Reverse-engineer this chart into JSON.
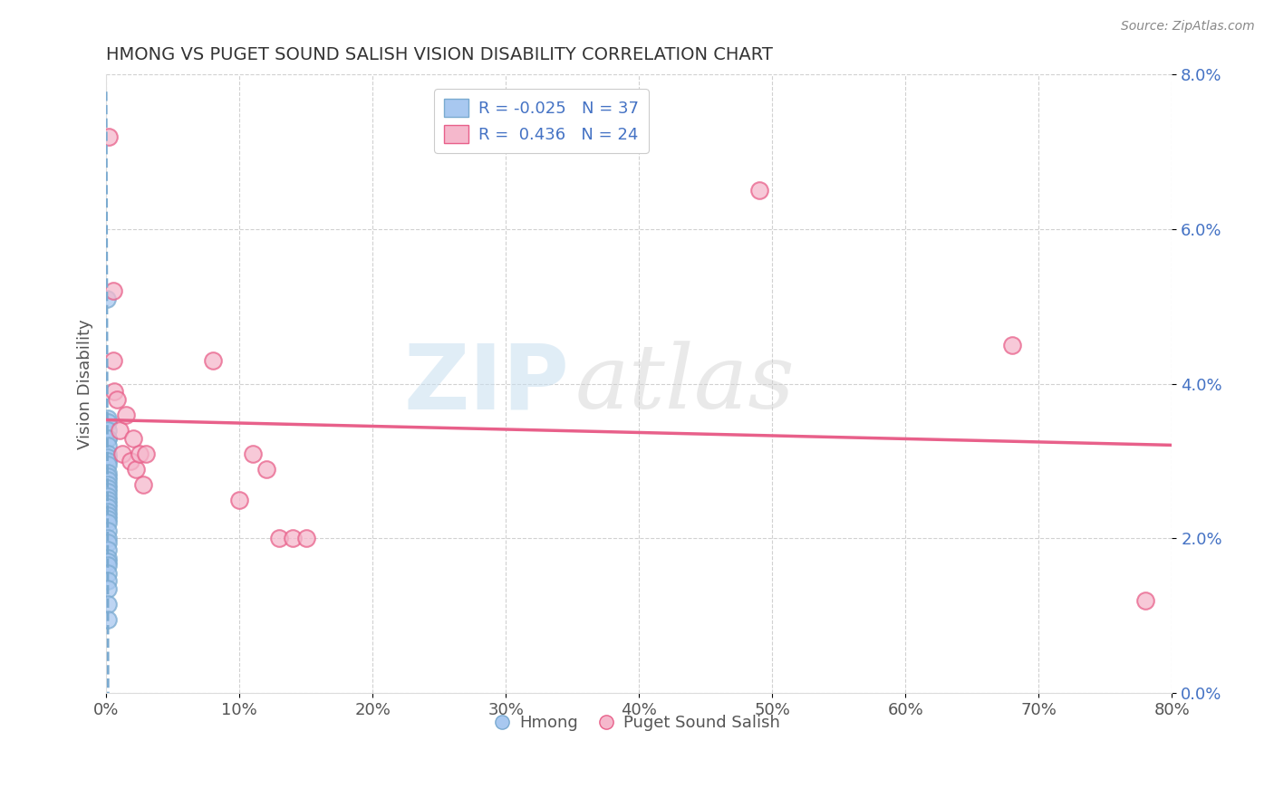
{
  "title": "HMONG VS PUGET SOUND SALISH VISION DISABILITY CORRELATION CHART",
  "source": "Source: ZipAtlas.com",
  "xlabel": "",
  "ylabel": "Vision Disability",
  "legend_label1": "Hmong",
  "legend_label2": "Puget Sound Salish",
  "R1": -0.025,
  "N1": 37,
  "R2": 0.436,
  "N2": 24,
  "xlim": [
    0,
    0.8
  ],
  "ylim": [
    0,
    0.08
  ],
  "xticks": [
    0.0,
    0.1,
    0.2,
    0.3,
    0.4,
    0.5,
    0.6,
    0.7,
    0.8
  ],
  "yticks": [
    0.0,
    0.02,
    0.04,
    0.06,
    0.08
  ],
  "color_blue": "#a8c8f0",
  "color_pink": "#f5b8cc",
  "color_line_blue": "#7aaad0",
  "color_line_pink": "#e8608a",
  "watermark_text": "ZIP",
  "watermark_text2": "atlas",
  "blue_points": [
    [
      0.0005,
      0.051
    ],
    [
      0.001,
      0.033
    ],
    [
      0.001,
      0.0355
    ],
    [
      0.001,
      0.035
    ],
    [
      0.001,
      0.034
    ],
    [
      0.001,
      0.033
    ],
    [
      0.001,
      0.032
    ],
    [
      0.001,
      0.031
    ],
    [
      0.001,
      0.0305
    ],
    [
      0.001,
      0.03
    ],
    [
      0.001,
      0.0295
    ],
    [
      0.001,
      0.0285
    ],
    [
      0.001,
      0.028
    ],
    [
      0.001,
      0.0275
    ],
    [
      0.001,
      0.027
    ],
    [
      0.001,
      0.0265
    ],
    [
      0.001,
      0.026
    ],
    [
      0.001,
      0.0255
    ],
    [
      0.001,
      0.025
    ],
    [
      0.001,
      0.0245
    ],
    [
      0.001,
      0.024
    ],
    [
      0.001,
      0.0235
    ],
    [
      0.001,
      0.023
    ],
    [
      0.001,
      0.0225
    ],
    [
      0.001,
      0.022
    ],
    [
      0.001,
      0.021
    ],
    [
      0.001,
      0.02
    ],
    [
      0.001,
      0.0195
    ],
    [
      0.001,
      0.0185
    ],
    [
      0.001,
      0.0175
    ],
    [
      0.001,
      0.017
    ],
    [
      0.001,
      0.0165
    ],
    [
      0.001,
      0.0155
    ],
    [
      0.001,
      0.0145
    ],
    [
      0.001,
      0.0135
    ],
    [
      0.001,
      0.0115
    ],
    [
      0.001,
      0.0095
    ]
  ],
  "pink_points": [
    [
      0.002,
      0.072
    ],
    [
      0.005,
      0.052
    ],
    [
      0.005,
      0.043
    ],
    [
      0.006,
      0.039
    ],
    [
      0.008,
      0.038
    ],
    [
      0.01,
      0.034
    ],
    [
      0.012,
      0.031
    ],
    [
      0.015,
      0.036
    ],
    [
      0.018,
      0.03
    ],
    [
      0.02,
      0.033
    ],
    [
      0.022,
      0.029
    ],
    [
      0.025,
      0.031
    ],
    [
      0.028,
      0.027
    ],
    [
      0.03,
      0.031
    ],
    [
      0.08,
      0.043
    ],
    [
      0.1,
      0.025
    ],
    [
      0.11,
      0.031
    ],
    [
      0.12,
      0.029
    ],
    [
      0.13,
      0.02
    ],
    [
      0.14,
      0.02
    ],
    [
      0.15,
      0.02
    ],
    [
      0.49,
      0.065
    ],
    [
      0.68,
      0.045
    ],
    [
      0.78,
      0.012
    ]
  ],
  "background_color": "#ffffff",
  "grid_color": "#cccccc"
}
